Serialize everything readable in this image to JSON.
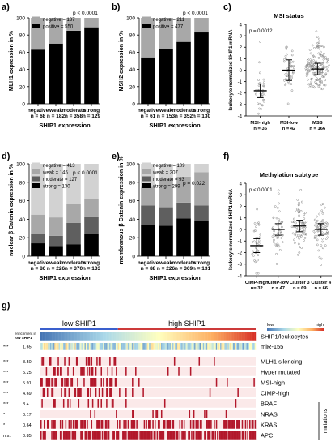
{
  "figure": {
    "panel_labels": [
      "a)",
      "b)",
      "c)",
      "d)",
      "e)",
      "f)",
      "g)"
    ]
  },
  "colors": {
    "black": "#000000",
    "dark_gray": "#5f5f5f",
    "mid_gray": "#a8a8a8",
    "light_gray": "#d2d2d2",
    "dot_gray": "#8a8a8a",
    "heat_red": "#b2182b",
    "heat_bg": "#fbe9e9"
  },
  "chart_data": [
    {
      "panel": "a)",
      "type": "bar",
      "stacked": true,
      "ylabel": "MLH1 expression in %",
      "xlabel": "SHIP1 expression",
      "ylim": [
        0,
        100
      ],
      "yticks": [
        0,
        20,
        40,
        60,
        80,
        100
      ],
      "categories": [
        "negative",
        "weak",
        "moderate",
        "strong"
      ],
      "n_labels": [
        "n = 68",
        "n = 182",
        "n = 358",
        "n = 129"
      ],
      "series": [
        {
          "name": "positive",
          "color": "#000000",
          "values": [
            63,
            70,
            85,
            89
          ]
        },
        {
          "name": "negative",
          "color": "#a8a8a8",
          "values": [
            37,
            30,
            15,
            11
          ]
        }
      ],
      "legend": [
        {
          "label": "negative = 137",
          "color": "#a8a8a8"
        },
        {
          "label": "positive = 550",
          "color": "#000000"
        }
      ],
      "pvalue": "p < 0.0001"
    },
    {
      "panel": "b)",
      "type": "bar",
      "stacked": true,
      "ylabel": "MSH2 expression in %",
      "xlabel": "SHIP1 expression",
      "ylim": [
        0,
        100
      ],
      "yticks": [
        0,
        20,
        40,
        60,
        80,
        100
      ],
      "categories": [
        "negative",
        "weak",
        "moderate",
        "strong"
      ],
      "n_labels": [
        "n = 61",
        "n = 153",
        "n = 352",
        "n = 130"
      ],
      "series": [
        {
          "name": "positive",
          "color": "#000000",
          "values": [
            54,
            64,
            72,
            83
          ]
        },
        {
          "name": "negative",
          "color": "#a8a8a8",
          "values": [
            46,
            36,
            28,
            17
          ]
        }
      ],
      "legend": [
        {
          "label": "negative = 211",
          "color": "#a8a8a8"
        },
        {
          "label": "positive = 477",
          "color": "#000000"
        }
      ],
      "pvalue": "p < 0.0001"
    },
    {
      "panel": "c)",
      "type": "scatter",
      "title": "MSI status",
      "ylabel": "leukocyte normalized SHIP1 mRNA",
      "ylim": [
        -4,
        4
      ],
      "yticks": [
        -4,
        -3,
        -2,
        -1,
        0,
        1,
        2,
        3,
        4
      ],
      "categories": [
        "MSI-high",
        "MSI-low",
        "MSS"
      ],
      "n_labels": [
        "n = 35",
        "n = 42",
        "n = 166"
      ],
      "means": [
        -1.8,
        0.0,
        0.1
      ],
      "error": [
        0.6,
        0.9,
        0.5
      ],
      "counts": [
        35,
        42,
        166
      ],
      "pvalue": "p = 0.0012"
    },
    {
      "panel": "d)",
      "type": "bar",
      "stacked": true,
      "ylabel": "nuclear β Catenin expression in %",
      "xlabel": "SHIP1 expression",
      "ylim": [
        0,
        100
      ],
      "yticks": [
        0,
        20,
        40,
        60,
        80,
        100
      ],
      "categories": [
        "negative",
        "weak",
        "moderate",
        "strong"
      ],
      "n_labels": [
        "n = 86",
        "n = 226",
        "n = 370",
        "n = 133"
      ],
      "series": [
        {
          "name": "strong",
          "color": "#000000",
          "values": [
            14,
            11,
            13,
            24
          ]
        },
        {
          "name": "moderate",
          "color": "#5f5f5f",
          "values": [
            10,
            11,
            23,
            19
          ]
        },
        {
          "name": "weak",
          "color": "#a8a8a8",
          "values": [
            21,
            20,
            21,
            19
          ]
        },
        {
          "name": "negative",
          "color": "#d2d2d2",
          "values": [
            55,
            58,
            43,
            38
          ]
        }
      ],
      "legend": [
        {
          "label": "negative = 413",
          "color": "#d2d2d2"
        },
        {
          "label": "weak = 145",
          "color": "#a8a8a8"
        },
        {
          "label": "moderate = 127",
          "color": "#5f5f5f"
        },
        {
          "label": "strong = 130",
          "color": "#000000"
        }
      ],
      "pvalue": "p < 0.0001"
    },
    {
      "panel": "e)",
      "type": "bar",
      "stacked": true,
      "ylabel": "membranous β Catenin expression in %",
      "xlabel": "SHIP1 expression",
      "ylim": [
        0,
        100
      ],
      "yticks": [
        0,
        20,
        40,
        60,
        80,
        100
      ],
      "categories": [
        "negative",
        "weak",
        "moderate",
        "strong"
      ],
      "n_labels": [
        "n = 88",
        "n = 226",
        "n = 369",
        "n = 131"
      ],
      "series": [
        {
          "name": "strong",
          "color": "#000000",
          "values": [
            34,
            33,
            41,
            38
          ]
        },
        {
          "name": "moderate",
          "color": "#5f5f5f",
          "values": [
            21,
            20,
            17,
            17
          ]
        },
        {
          "name": "weak",
          "color": "#a8a8a8",
          "values": [
            21,
            31,
            28,
            36
          ]
        },
        {
          "name": "negative",
          "color": "#d2d2d2",
          "values": [
            24,
            16,
            14,
            9
          ]
        }
      ],
      "legend": [
        {
          "label": "negative = 109",
          "color": "#d2d2d2"
        },
        {
          "label": "weak = 307",
          "color": "#a8a8a8"
        },
        {
          "label": "moderate = 93",
          "color": "#5f5f5f"
        },
        {
          "label": "strong = 299",
          "color": "#000000"
        }
      ],
      "pvalue": "p = 0.022"
    },
    {
      "panel": "f)",
      "type": "scatter",
      "title": "Methylation subtype",
      "ylabel": "leukocyte normalized SHIP1 mRNA",
      "ylim": [
        -4,
        4
      ],
      "yticks": [
        -4,
        -3,
        -2,
        -1,
        0,
        1,
        2,
        3,
        4
      ],
      "categories": [
        "CIMP-high",
        "CIMP-low",
        "Cluster 3",
        "Cluster 4"
      ],
      "n_labels": [
        "n= 32",
        "n = 47",
        "n = 69",
        "n = 66"
      ],
      "means": [
        -1.4,
        0.0,
        0.3,
        0.0
      ],
      "error": [
        0.6,
        0.5,
        0.5,
        0.5
      ],
      "counts": [
        32,
        47,
        69,
        66
      ],
      "pvalue": "p < 0.0001"
    },
    {
      "panel": "g)",
      "type": "heatmap",
      "group_labels": [
        "low SHIP1",
        "high SHIP1"
      ],
      "scale_labels": [
        "low",
        "high"
      ],
      "stat_header": [
        "enrichment in",
        "low SHIP1"
      ],
      "rows": [
        {
          "name": "SHIP1/leukocytes",
          "sig": "",
          "stat": "",
          "kind": "gradient"
        },
        {
          "name": "miR-155",
          "sig": "***",
          "stat": "1.65",
          "kind": "expr"
        },
        {
          "name": "MLH1 silencing",
          "sig": "***",
          "stat": "8.50",
          "kind": "binary",
          "p_low": 0.35,
          "p_high": 0.03
        },
        {
          "name": "Hyper mutated",
          "sig": "***",
          "stat": "5.25",
          "kind": "binary",
          "p_low": 0.32,
          "p_high": 0.04
        },
        {
          "name": "MSI-high",
          "sig": "***",
          "stat": "5.91",
          "kind": "binary",
          "p_low": 0.33,
          "p_high": 0.04
        },
        {
          "name": "CIMP-high",
          "sig": "***",
          "stat": "4.69",
          "kind": "binary",
          "p_low": 0.35,
          "p_high": 0.05
        },
        {
          "name": "BRAF",
          "sig": "***",
          "stat": "8.4",
          "kind": "binary",
          "p_low": 0.3,
          "p_high": 0.03
        },
        {
          "name": "NRAS",
          "sig": "*",
          "stat": "0.17",
          "kind": "binary",
          "p_low": 0.02,
          "p_high": 0.08
        },
        {
          "name": "KRAS",
          "sig": "*",
          "stat": "0.64",
          "kind": "binary",
          "p_low": 0.35,
          "p_high": 0.48
        },
        {
          "name": "APC",
          "sig": "n.s.",
          "stat": "0.85",
          "kind": "binary",
          "p_low": 0.65,
          "p_high": 0.72
        }
      ],
      "mutations_label": "mutations"
    }
  ]
}
